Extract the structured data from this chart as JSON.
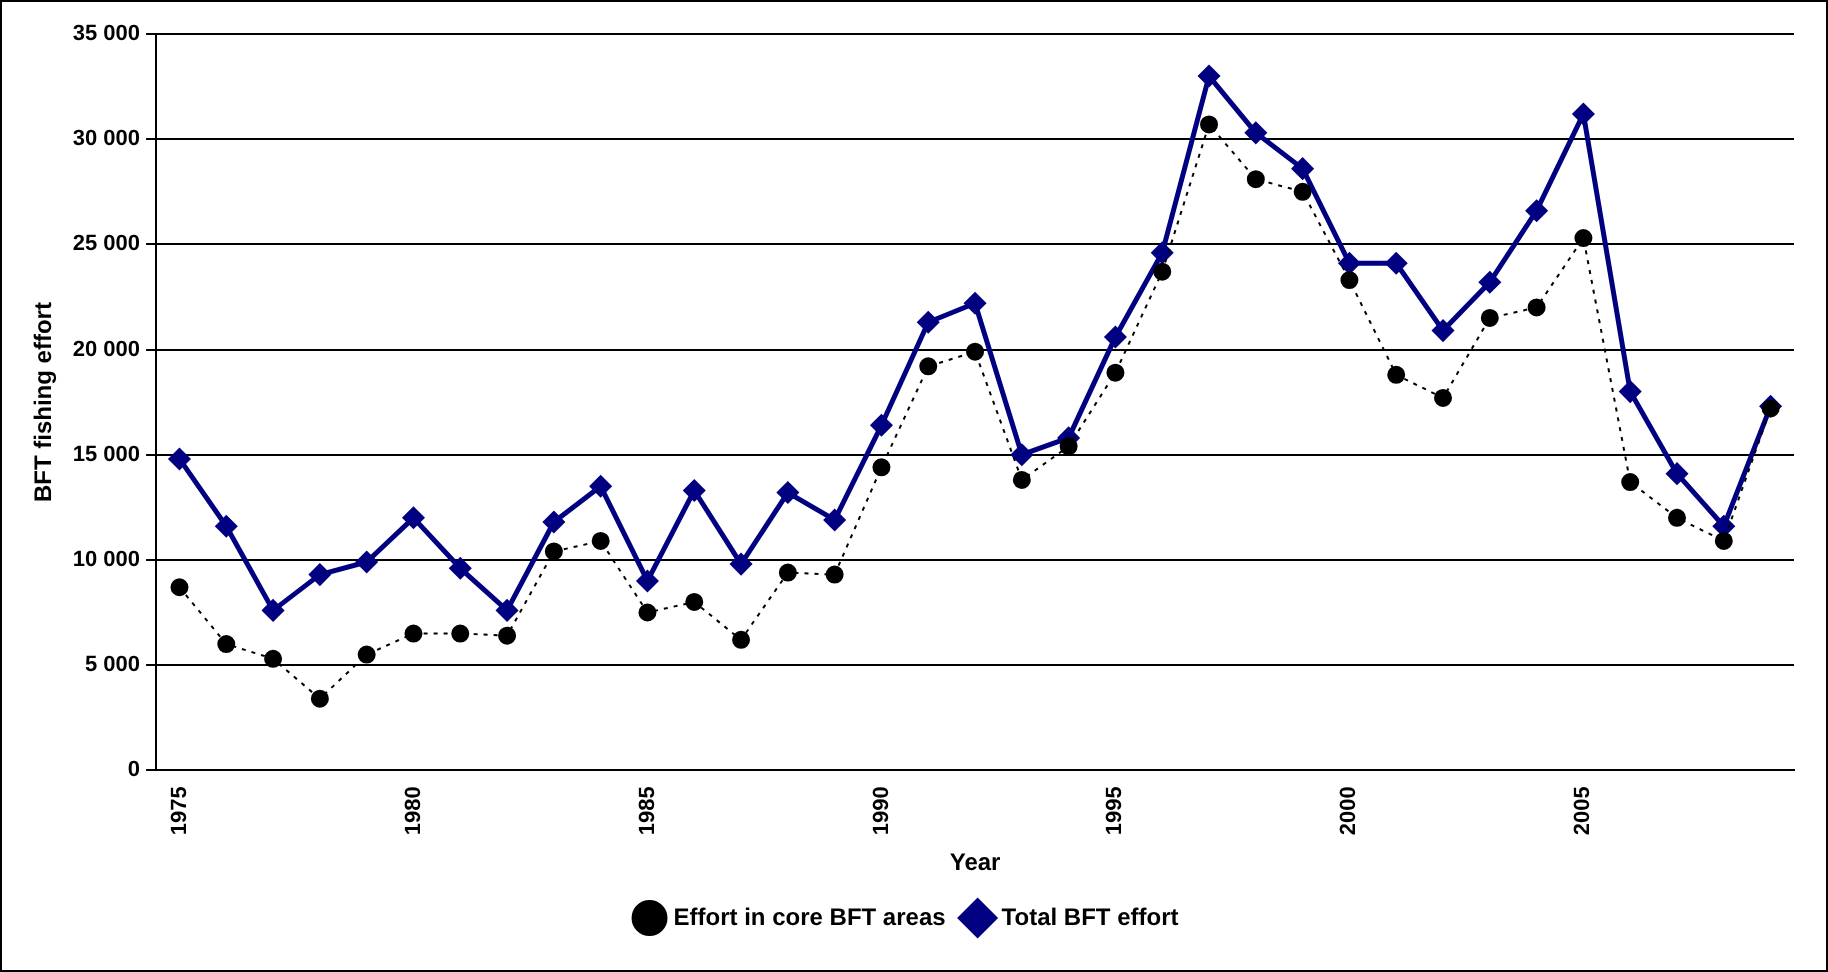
{
  "chart_data": {
    "type": "line",
    "xlabel": "Year",
    "ylabel": "BFT fishing effort",
    "categories": [
      "1975",
      null,
      null,
      null,
      null,
      "1980",
      null,
      null,
      null,
      null,
      "1985",
      null,
      null,
      null,
      null,
      "1990",
      null,
      null,
      null,
      null,
      "1995",
      null,
      null,
      null,
      null,
      "2000",
      null,
      null,
      null,
      null,
      "2005",
      null,
      null,
      null,
      null
    ],
    "series": [
      {
        "name": "Total BFT effort",
        "color": "#000080",
        "marker": "diamond",
        "line_style": "solid",
        "values": [
          14800,
          11600,
          7600,
          9300,
          9900,
          12000,
          9600,
          7600,
          11800,
          13500,
          9000,
          13300,
          9800,
          13200,
          11900,
          16400,
          21300,
          22200,
          15000,
          15800,
          20600,
          24600,
          33000,
          30300,
          28600,
          24100,
          24100,
          20900,
          23200,
          26600,
          31200,
          18000,
          14100,
          11600,
          17300
        ]
      },
      {
        "name": "Effort in core BFT areas",
        "color": "#000000",
        "marker": "circle",
        "line_style": "dotted",
        "values": [
          8700,
          6000,
          5300,
          3400,
          5500,
          6500,
          6500,
          6400,
          10400,
          10900,
          7500,
          8000,
          6200,
          9400,
          9300,
          14400,
          19200,
          19900,
          13800,
          15400,
          18900,
          23700,
          30700,
          28100,
          27500,
          23300,
          18800,
          17700,
          21500,
          22000,
          25300,
          13700,
          12000,
          10900,
          17200
        ]
      }
    ],
    "ylim": [
      0,
      35000
    ],
    "yticks": [
      0,
      {
        "value": 5000,
        "label": "5 000"
      },
      {
        "value": 10000,
        "label": "10 000"
      },
      {
        "value": 15000,
        "label": "15 000"
      },
      {
        "value": 20000,
        "label": "20 000"
      },
      {
        "value": 25000,
        "label": "25 000"
      },
      {
        "value": 30000,
        "label": "30 000"
      },
      {
        "value": 35000,
        "label": "35 000"
      }
    ],
    "grid": "y",
    "legend": "bottom"
  }
}
